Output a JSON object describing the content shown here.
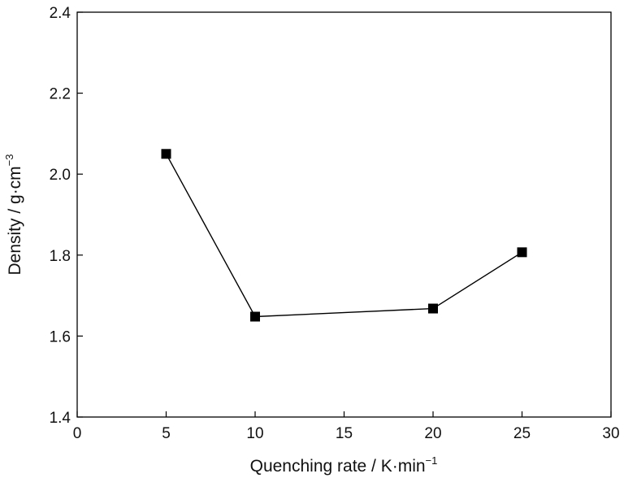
{
  "chart_data": {
    "type": "line",
    "title": "",
    "xlabel": "Quenching rate / K·min",
    "xlabel_sup": "−1",
    "ylabel": "Density / g·cm",
    "ylabel_sup": "−3",
    "xlim": [
      0,
      30
    ],
    "ylim": [
      1.4,
      2.4
    ],
    "xticks": [
      "0",
      "5",
      "10",
      "15",
      "20",
      "25",
      "30"
    ],
    "yticks": [
      "1.4",
      "1.6",
      "1.8",
      "2.0",
      "2.2",
      "2.4"
    ],
    "grid": false,
    "legend": "none",
    "marker": "filled-square",
    "line_color": "#000000",
    "series": [
      {
        "x": [
          5,
          10,
          20,
          25
        ],
        "y": [
          2.05,
          1.648,
          1.668,
          1.807
        ]
      }
    ]
  }
}
